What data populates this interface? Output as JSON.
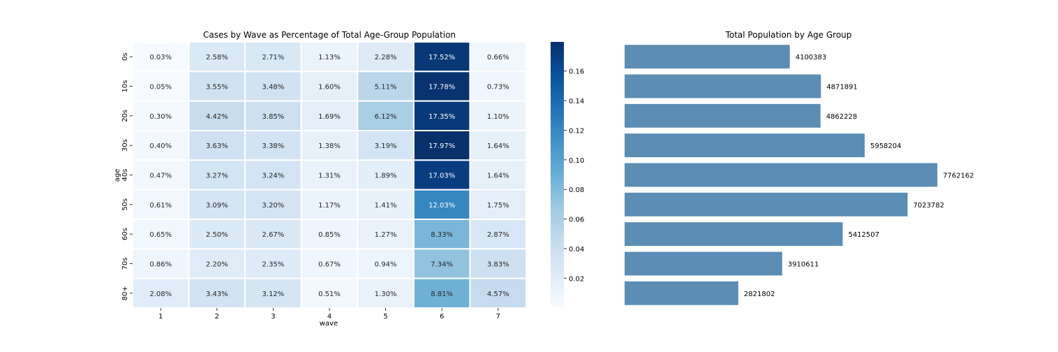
{
  "chart_data": [
    {
      "type": "heatmap",
      "title": "Cases by Wave as Percentage of Total Age-Group Population",
      "xlabel": "wave",
      "ylabel": "age",
      "x_categories": [
        "1",
        "2",
        "3",
        "4",
        "5",
        "6",
        "7"
      ],
      "y_categories": [
        "0s",
        "10s",
        "20s",
        "30s",
        "40s",
        "50s",
        "60s",
        "70s",
        "80+"
      ],
      "values": [
        [
          0.0003,
          0.0258,
          0.0271,
          0.0113,
          0.0228,
          0.1752,
          0.0066
        ],
        [
          0.0005,
          0.0355,
          0.0348,
          0.016,
          0.0511,
          0.1778,
          0.0073
        ],
        [
          0.003,
          0.0442,
          0.0385,
          0.0169,
          0.0612,
          0.1735,
          0.011
        ],
        [
          0.004,
          0.0363,
          0.0338,
          0.0138,
          0.0319,
          0.1797,
          0.0164
        ],
        [
          0.0047,
          0.0327,
          0.0324,
          0.0131,
          0.0189,
          0.1703,
          0.0164
        ],
        [
          0.0061,
          0.0309,
          0.032,
          0.0117,
          0.0141,
          0.1203,
          0.0175
        ],
        [
          0.0065,
          0.025,
          0.0267,
          0.0085,
          0.0127,
          0.0833,
          0.0287
        ],
        [
          0.0086,
          0.022,
          0.0235,
          0.0067,
          0.0094,
          0.0734,
          0.0383
        ],
        [
          0.0208,
          0.0343,
          0.0312,
          0.0051,
          0.013,
          0.0881,
          0.0457
        ]
      ],
      "cell_labels": [
        [
          "0.03%",
          "2.58%",
          "2.71%",
          "1.13%",
          "2.28%",
          "17.52%",
          "0.66%"
        ],
        [
          "0.05%",
          "3.55%",
          "3.48%",
          "1.60%",
          "5.11%",
          "17.78%",
          "0.73%"
        ],
        [
          "0.30%",
          "4.42%",
          "3.85%",
          "1.69%",
          "6.12%",
          "17.35%",
          "1.10%"
        ],
        [
          "0.40%",
          "3.63%",
          "3.38%",
          "1.38%",
          "3.19%",
          "17.97%",
          "1.64%"
        ],
        [
          "0.47%",
          "3.27%",
          "3.24%",
          "1.31%",
          "1.89%",
          "17.03%",
          "1.64%"
        ],
        [
          "0.61%",
          "3.09%",
          "3.20%",
          "1.17%",
          "1.41%",
          "12.03%",
          "1.75%"
        ],
        [
          "0.65%",
          "2.50%",
          "2.67%",
          "0.85%",
          "1.27%",
          "8.33%",
          "2.87%"
        ],
        [
          "0.86%",
          "2.20%",
          "2.35%",
          "0.67%",
          "0.94%",
          "7.34%",
          "3.83%"
        ],
        [
          "2.08%",
          "3.43%",
          "3.12%",
          "0.51%",
          "1.30%",
          "8.81%",
          "4.57%"
        ]
      ],
      "colormap": "Blues",
      "colorbar": {
        "range": [
          0.0003,
          0.1797
        ],
        "ticks": [
          "0.02",
          "0.04",
          "0.06",
          "0.08",
          "0.10",
          "0.12",
          "0.14",
          "0.16"
        ]
      },
      "grid": false
    },
    {
      "type": "bar",
      "orientation": "horizontal",
      "title": "Total Population by Age Group",
      "categories": [
        "0s",
        "10s",
        "20s",
        "30s",
        "40s",
        "50s",
        "60s",
        "70s",
        "80+"
      ],
      "values": [
        4100383,
        4871891,
        4862228,
        5958204,
        7762162,
        7023782,
        5412507,
        3910611,
        2821802
      ],
      "data_labels": [
        "4100383",
        "4871891",
        "4862228",
        "5958204",
        "7762162",
        "7023782",
        "5412507",
        "3910611",
        "2821802"
      ],
      "bar_color": "#5b8db5",
      "xlim": [
        0,
        9700000
      ],
      "axes_visible": false
    }
  ]
}
